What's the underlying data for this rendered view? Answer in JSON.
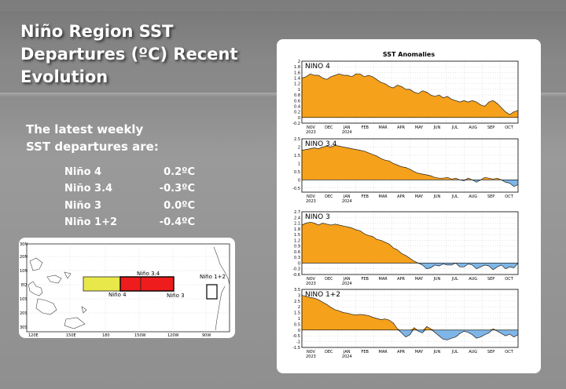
{
  "slide": {
    "title_lines": [
      "Niño Region SST",
      "Departures (ºC) Recent",
      "Evolution"
    ],
    "intro_lines": [
      "The latest weekly",
      "SST departures are:"
    ],
    "regions": [
      {
        "name": "Niño 4",
        "value": "0.2ºC"
      },
      {
        "name": "Niño 3.4",
        "value": "-0.3ºC"
      },
      {
        "name": "Niño 3",
        "value": "0.0ºC"
      },
      {
        "name": "Niño 1+2",
        "value": "-0.4ºC"
      }
    ]
  },
  "map": {
    "lat_labels": [
      "30N",
      "20N",
      "10N",
      "EQ",
      "10S",
      "20S",
      "30S"
    ],
    "lon_labels": [
      "120E",
      "150E",
      "180",
      "150W",
      "120W",
      "90W"
    ],
    "box_labels": {
      "nino4": "Niño 4",
      "nino34": "Niño 3.4",
      "nino3": "Niño 3",
      "nino12": "Niño 1+2"
    },
    "colors": {
      "nino4": "#e8e84a",
      "nino3": "#ee1c1c",
      "nino12": "#ffffff"
    }
  },
  "chart_data": {
    "type": "area",
    "title": "SST Anomalies",
    "x_ticks": [
      "NOV",
      "DEC",
      "JAN",
      "FEB",
      "MAR",
      "APR",
      "MAY",
      "JUN",
      "JUL",
      "AUG",
      "SEP",
      "OCT"
    ],
    "x_years": {
      "NOV": "2023",
      "JAN": "2024"
    },
    "colors": {
      "positive": "#f5a11c",
      "negative": "#7fb6e8"
    },
    "panels": [
      {
        "name": "NINO  4",
        "ylim": [
          -0.2,
          2
        ],
        "yticks": [
          "2",
          "1.8",
          "1.6",
          "1.4",
          "1.2",
          "1",
          "0.8",
          "0.6",
          "0.4",
          "0.2",
          "0",
          "-0.2"
        ],
        "ytick_values": [
          2,
          1.8,
          1.6,
          1.4,
          1.2,
          1,
          0.8,
          0.6,
          0.4,
          0.2,
          0,
          -0.2
        ],
        "values": [
          1.4,
          1.45,
          1.55,
          1.5,
          1.5,
          1.4,
          1.35,
          1.45,
          1.5,
          1.55,
          1.5,
          1.5,
          1.45,
          1.55,
          1.55,
          1.45,
          1.5,
          1.45,
          1.35,
          1.25,
          1.2,
          1.1,
          1.05,
          1.15,
          1.1,
          1.0,
          1.0,
          0.9,
          0.85,
          0.95,
          0.9,
          0.8,
          0.75,
          0.8,
          0.7,
          0.75,
          0.65,
          0.6,
          0.55,
          0.6,
          0.55,
          0.6,
          0.55,
          0.45,
          0.4,
          0.55,
          0.6,
          0.5,
          0.35,
          0.2,
          0.1,
          0.2,
          0.25
        ]
      },
      {
        "name": "NINO  3.4",
        "ylim": [
          -0.75,
          2.5
        ],
        "yticks": [
          "2.5",
          "2",
          "1.5",
          "1",
          "0.5",
          "0",
          "-0.5"
        ],
        "ytick_values": [
          2.5,
          2,
          1.5,
          1,
          0.5,
          0,
          -0.5
        ],
        "values": [
          1.8,
          1.85,
          1.9,
          1.95,
          1.9,
          2.0,
          2.05,
          2.0,
          2.1,
          2.05,
          2.0,
          1.95,
          1.9,
          1.85,
          1.8,
          1.75,
          1.65,
          1.55,
          1.45,
          1.3,
          1.2,
          1.15,
          1.0,
          0.9,
          0.8,
          0.75,
          0.65,
          0.5,
          0.4,
          0.35,
          0.3,
          0.25,
          0.15,
          0.1,
          0.1,
          0.15,
          0.05,
          0.1,
          0.0,
          -0.05,
          0.1,
          0.0,
          -0.15,
          0.0,
          0.15,
          0.1,
          0.05,
          0.1,
          0.0,
          -0.15,
          -0.2,
          -0.4,
          -0.3
        ]
      },
      {
        "name": "NINO  3",
        "ylim": [
          -0.6,
          2.7
        ],
        "yticks": [
          "2.7",
          "2.4",
          "2.1",
          "1.8",
          "1.5",
          "1.2",
          "0.9",
          "0.6",
          "0.3",
          "0",
          "-0.3",
          "-0.6"
        ],
        "ytick_values": [
          2.7,
          2.4,
          2.1,
          1.8,
          1.5,
          1.2,
          0.9,
          0.6,
          0.3,
          0,
          -0.3,
          -0.6
        ],
        "values": [
          2.0,
          2.1,
          2.15,
          2.1,
          2.0,
          2.1,
          2.05,
          2.0,
          2.05,
          2.0,
          1.95,
          1.9,
          1.85,
          1.75,
          1.7,
          1.55,
          1.45,
          1.4,
          1.25,
          1.2,
          1.1,
          1.0,
          0.8,
          0.7,
          0.5,
          0.4,
          0.25,
          0.1,
          0.0,
          -0.1,
          -0.3,
          -0.25,
          -0.1,
          -0.15,
          -0.05,
          -0.1,
          -0.1,
          0.0,
          -0.2,
          -0.2,
          -0.05,
          -0.1,
          -0.3,
          -0.2,
          -0.1,
          -0.15,
          -0.35,
          -0.2,
          -0.1,
          -0.3,
          -0.2,
          -0.25,
          0.0
        ]
      },
      {
        "name": "NINO  1+2",
        "ylim": [
          -1.5,
          3.5
        ],
        "yticks": [
          "3.5",
          "3",
          "2.5",
          "2",
          "1.5",
          "1",
          "0.5",
          "0",
          "-0.5",
          "-1",
          "-1.5"
        ],
        "ytick_values": [
          3.5,
          3,
          2.5,
          2,
          1.5,
          1,
          0.5,
          0,
          -0.5,
          -1,
          -1.5
        ],
        "values": [
          3.0,
          2.9,
          2.8,
          2.75,
          2.6,
          2.4,
          2.2,
          1.95,
          1.75,
          1.65,
          1.5,
          1.45,
          1.35,
          1.3,
          1.35,
          1.3,
          1.25,
          1.1,
          1.0,
          0.9,
          0.95,
          0.85,
          0.6,
          0.1,
          -0.25,
          -0.6,
          -0.4,
          0.2,
          -0.1,
          -0.25,
          0.3,
          0.1,
          -0.2,
          -0.5,
          -0.8,
          -0.85,
          -0.7,
          -0.6,
          -0.3,
          -0.1,
          -0.2,
          -0.4,
          -0.7,
          -0.6,
          -0.4,
          -0.25,
          0.1,
          -0.1,
          -0.3,
          -0.5,
          -0.35,
          -0.6,
          -0.4
        ]
      }
    ]
  }
}
